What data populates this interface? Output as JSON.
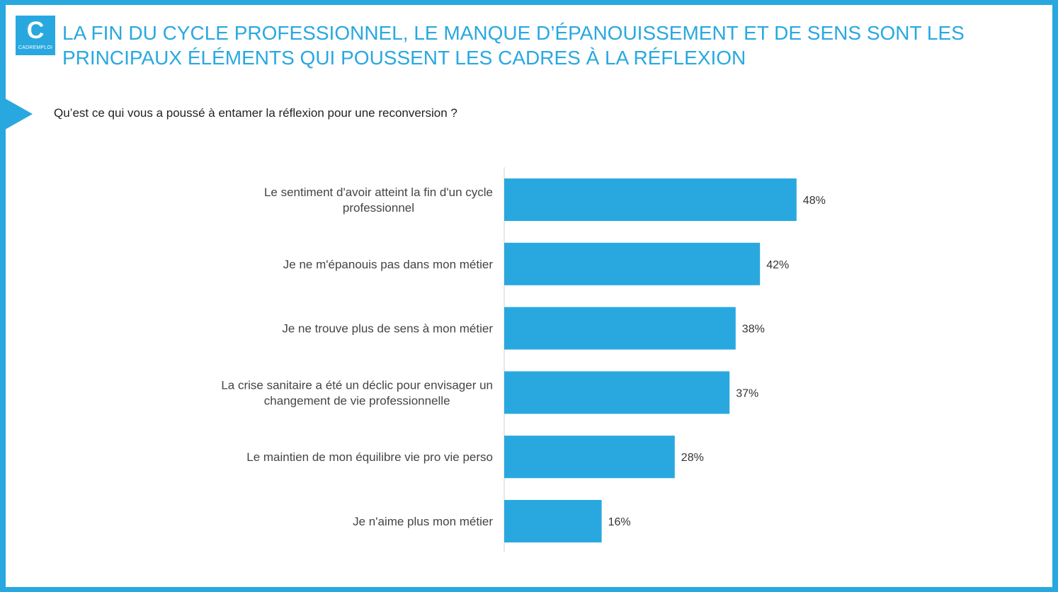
{
  "logo": {
    "letter": "C",
    "word": "CADREMPLOI"
  },
  "title_lines": [
    "LA FIN DU CYCLE PROFESSIONNEL, LE MANQUE D’ÉPANOUISSEMENT ET DE SENS SONT LES",
    "PRINCIPAUX ÉLÉMENTS QUI POUSSENT LES CADRES À LA RÉFLEXION"
  ],
  "question": "Qu’est ce qui vous a poussé à entamer la réflexion pour une reconversion ?",
  "colors": {
    "accent": "#29a8e0",
    "bar": "#29a8e0"
  },
  "chart_data": {
    "type": "bar",
    "orientation": "horizontal",
    "categories": [
      [
        "Le sentiment d'avoir atteint la fin d'un cycle",
        "professionnel"
      ],
      [
        "Je ne m'épanouis pas dans mon métier"
      ],
      [
        "Je ne trouve plus de sens à mon métier"
      ],
      [
        "La crise sanitaire a été un déclic pour envisager un",
        "changement de vie professionnelle"
      ],
      [
        "Le maintien de mon équilibre vie pro vie perso"
      ],
      [
        "Je n'aime plus mon métier"
      ]
    ],
    "values": [
      48,
      42,
      38,
      37,
      28,
      16
    ],
    "value_labels": [
      "48%",
      "42%",
      "38%",
      "37%",
      "28%",
      "16%"
    ],
    "xlim": [
      0,
      100
    ],
    "grid": false,
    "legend": "none"
  }
}
